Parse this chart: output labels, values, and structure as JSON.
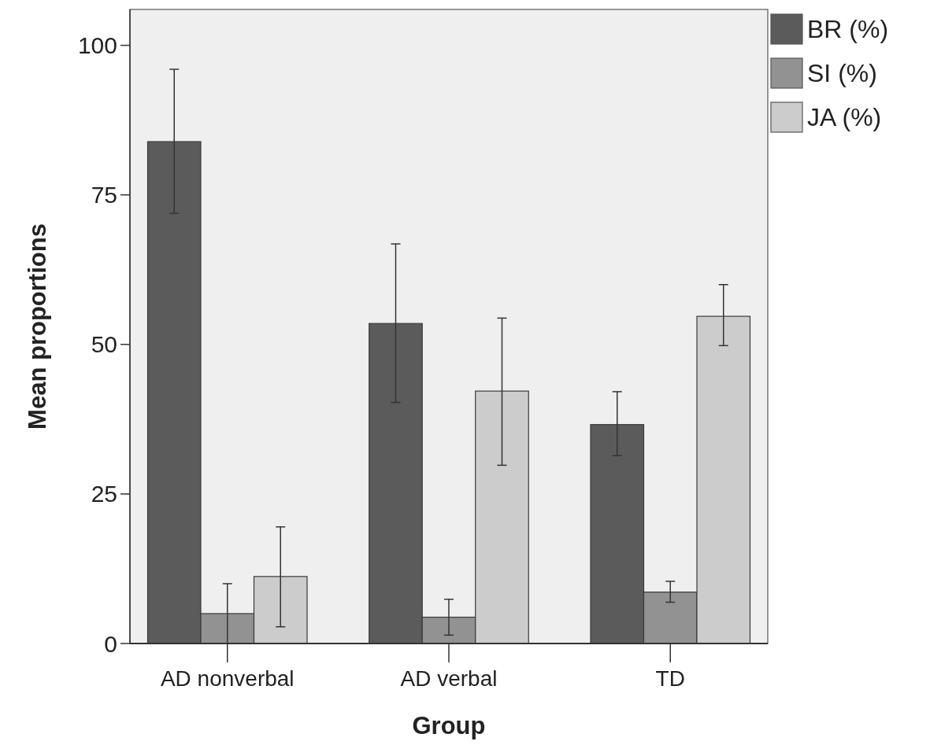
{
  "chart_data": {
    "type": "bar",
    "xlabel": "Group",
    "ylabel": "Mean proportions",
    "categories": [
      "AD nonverbal",
      "AD verbal",
      "TD"
    ],
    "series": [
      {
        "name": "BR (%)",
        "color": "#5b5b5b",
        "values": [
          83.9,
          53.5,
          36.6
        ],
        "errors": [
          [
            71.9,
            96.0
          ],
          [
            40.3,
            66.8
          ],
          [
            31.4,
            42.1
          ]
        ]
      },
      {
        "name": "SI (%)",
        "color": "#929292",
        "values": [
          5.0,
          4.4,
          8.6
        ],
        "errors": [
          [
            0,
            10.0
          ],
          [
            1.4,
            7.4
          ],
          [
            6.9,
            10.4
          ]
        ]
      },
      {
        "name": "JA (%)",
        "color": "#cccccc",
        "values": [
          11.2,
          42.2,
          54.7
        ],
        "errors": [
          [
            2.8,
            19.5
          ],
          [
            29.8,
            54.4
          ],
          [
            49.8,
            60.0
          ]
        ]
      }
    ],
    "ylim": [
      0,
      106
    ],
    "yticks": [
      0,
      25,
      50,
      75,
      100
    ],
    "grid": false,
    "legend": "top right"
  }
}
